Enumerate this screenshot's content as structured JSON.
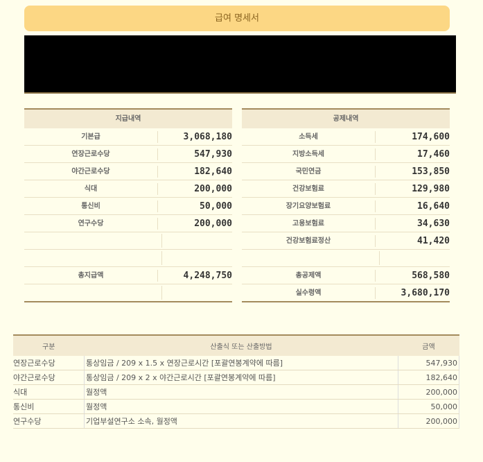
{
  "title": "급여 명세서",
  "payments": {
    "header": "지급내역",
    "rows": [
      {
        "label": "기본급",
        "value": "3,068,180"
      },
      {
        "label": "연장근로수당",
        "value": "547,930"
      },
      {
        "label": "야간근로수당",
        "value": "182,640"
      },
      {
        "label": "식대",
        "value": "200,000"
      },
      {
        "label": "통신비",
        "value": "50,000"
      },
      {
        "label": "연구수당",
        "value": "200,000"
      },
      {
        "label": "",
        "value": ""
      },
      {
        "label": "",
        "value": ""
      },
      {
        "label": "총지급액",
        "value": "4,248,750"
      },
      {
        "label": "",
        "value": ""
      }
    ]
  },
  "deductions": {
    "header": "공제내역",
    "rows": [
      {
        "label": "소득세",
        "value": "174,600"
      },
      {
        "label": "지방소득세",
        "value": "17,460"
      },
      {
        "label": "국민연금",
        "value": "153,850"
      },
      {
        "label": "건강보험료",
        "value": "129,980"
      },
      {
        "label": "장기요양보험료",
        "value": "16,640"
      },
      {
        "label": "고용보험료",
        "value": "34,630"
      },
      {
        "label": "건강보험료정산",
        "value": "41,420"
      },
      {
        "label": "",
        "value": ""
      },
      {
        "label": "총공제액",
        "value": "568,580"
      },
      {
        "label": "실수령액",
        "value": "3,680,170"
      }
    ]
  },
  "calculation": {
    "headers": [
      "구분",
      "산출식 또는 산출방법",
      "금액"
    ],
    "rows": [
      {
        "item": "연장근로수당",
        "method": "통상임금 / 209 x 1.5 x 연장근로시간 [포괄연봉계약에 따름]",
        "amount": "547,930"
      },
      {
        "item": "야간근로수당",
        "method": "통상임금 / 209 x 2 x 야간근로시간 [포괄연봉계약에 따름]",
        "amount": "182,640"
      },
      {
        "item": "식대",
        "method": "월정액",
        "amount": "200,000"
      },
      {
        "item": "통신비",
        "method": "월정액",
        "amount": "50,000"
      },
      {
        "item": "연구수당",
        "method": "기업부설연구소 소속, 월정액",
        "amount": "200,000"
      }
    ]
  }
}
